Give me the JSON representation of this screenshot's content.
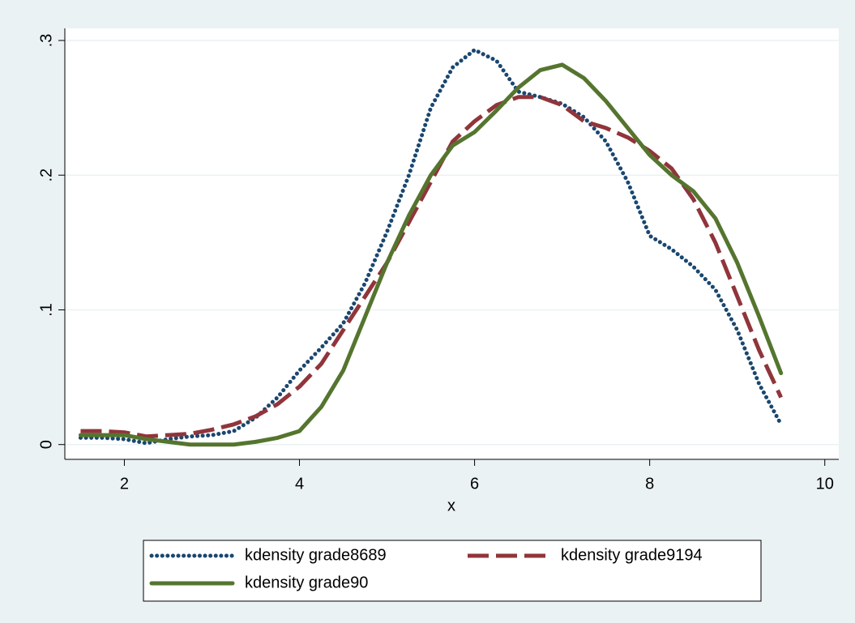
{
  "chart_data": {
    "type": "line",
    "x_label": "x",
    "x": [
      1.5,
      1.75,
      2.0,
      2.25,
      2.5,
      2.75,
      3.0,
      3.25,
      3.5,
      3.75,
      4.0,
      4.25,
      4.5,
      4.75,
      5.0,
      5.25,
      5.5,
      5.75,
      6.0,
      6.25,
      6.5,
      6.75,
      7.0,
      7.25,
      7.5,
      7.75,
      8.0,
      8.25,
      8.5,
      8.75,
      9.0,
      9.25,
      9.5
    ],
    "series": [
      {
        "name": "kdensity grade8689",
        "color": "#1a476f",
        "line_style": "dot",
        "values": [
          0.005,
          0.005,
          0.004,
          0.001,
          0.004,
          0.006,
          0.007,
          0.01,
          0.02,
          0.035,
          0.055,
          0.072,
          0.09,
          0.12,
          0.158,
          0.2,
          0.25,
          0.28,
          0.293,
          0.285,
          0.262,
          0.258,
          0.253,
          0.243,
          0.225,
          0.195,
          0.155,
          0.145,
          0.132,
          0.115,
          0.085,
          0.045,
          0.015
        ]
      },
      {
        "name": "kdensity grade9194",
        "color": "#90353b",
        "line_style": "dash",
        "values": [
          0.01,
          0.01,
          0.009,
          0.006,
          0.007,
          0.008,
          0.011,
          0.015,
          0.021,
          0.03,
          0.043,
          0.06,
          0.085,
          0.11,
          0.135,
          0.165,
          0.195,
          0.225,
          0.24,
          0.252,
          0.258,
          0.258,
          0.252,
          0.24,
          0.235,
          0.228,
          0.218,
          0.205,
          0.182,
          0.15,
          0.11,
          0.07,
          0.035
        ]
      },
      {
        "name": "kdensity grade90",
        "color": "#55752f",
        "line_style": "solid",
        "values": [
          0.007,
          0.007,
          0.007,
          0.004,
          0.002,
          0.0,
          0.0,
          0.0,
          0.002,
          0.005,
          0.01,
          0.028,
          0.055,
          0.095,
          0.135,
          0.17,
          0.2,
          0.222,
          0.232,
          0.248,
          0.265,
          0.278,
          0.282,
          0.272,
          0.255,
          0.235,
          0.215,
          0.2,
          0.188,
          0.168,
          0.135,
          0.095,
          0.053
        ]
      }
    ],
    "xlim": [
      1.32,
      10.16
    ],
    "xticks": [
      2,
      4,
      6,
      8,
      10
    ],
    "ylim": [
      -0.011,
      0.309
    ],
    "yticks": [
      0,
      {
        "value": 0.1,
        "label": ".1"
      },
      {
        "value": 0.2,
        "label": ".2"
      },
      {
        "value": 0.3,
        "label": ".3"
      }
    ],
    "grid": true,
    "legend": "bottom"
  }
}
